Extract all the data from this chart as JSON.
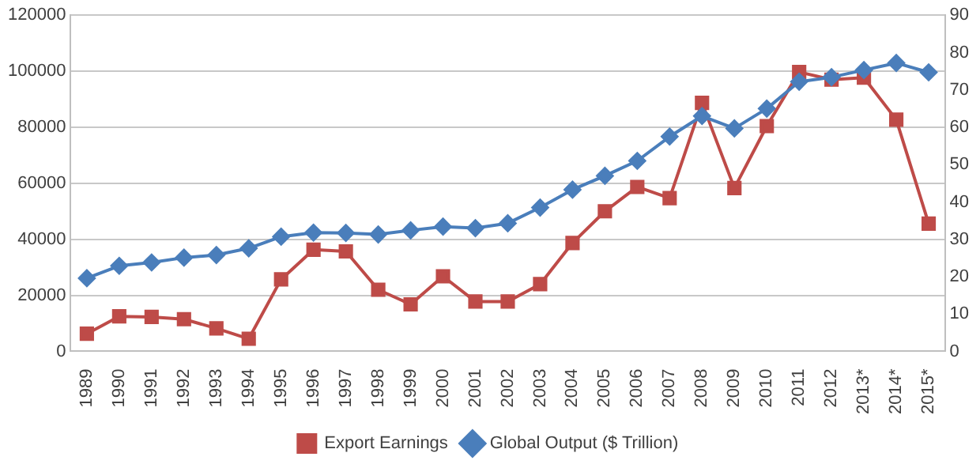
{
  "chart_data": {
    "type": "line",
    "categories": [
      "1989",
      "1990",
      "1991",
      "1992",
      "1993",
      "1994",
      "1995",
      "1996",
      "1997",
      "1998",
      "1999",
      "2000",
      "2001",
      "2002",
      "2003",
      "2004",
      "2005",
      "2006",
      "2007",
      "2008",
      "2009",
      "2010",
      "2011",
      "2012",
      "2013*",
      "2014*",
      "2015*"
    ],
    "series": [
      {
        "name": "Export Earnings",
        "color": "#be4b48",
        "marker": "square",
        "values": [
          6300,
          12500,
          12300,
          11500,
          8200,
          4500,
          25700,
          36300,
          35700,
          22000,
          16800,
          26800,
          17800,
          17800,
          24000,
          38700,
          50000,
          58700,
          54700,
          88700,
          58300,
          80400,
          99700,
          97000,
          97700,
          82700,
          45600
        ]
      },
      {
        "name": "Global Output ($ Trillion)",
        "color": "#4a7ebb",
        "marker": "diamond",
        "axis": "y2",
        "values": [
          19.6,
          22.9,
          23.8,
          25.1,
          25.8,
          27.6,
          30.7,
          31.8,
          31.7,
          31.3,
          32.4,
          33.4,
          33.0,
          34.3,
          38.5,
          43.3,
          47,
          51,
          57.5,
          63,
          59.7,
          65,
          72.2,
          73.4,
          75.3,
          77.2,
          74.7
        ]
      }
    ],
    "ylim": [
      0,
      120000
    ],
    "yticks": [
      0,
      20000,
      40000,
      60000,
      80000,
      100000,
      120000
    ],
    "y2lim": [
      0,
      90
    ],
    "y2ticks": [
      0,
      10,
      20,
      30,
      40,
      50,
      60,
      70,
      80,
      90
    ],
    "grid": "y",
    "legend": "bottom"
  }
}
